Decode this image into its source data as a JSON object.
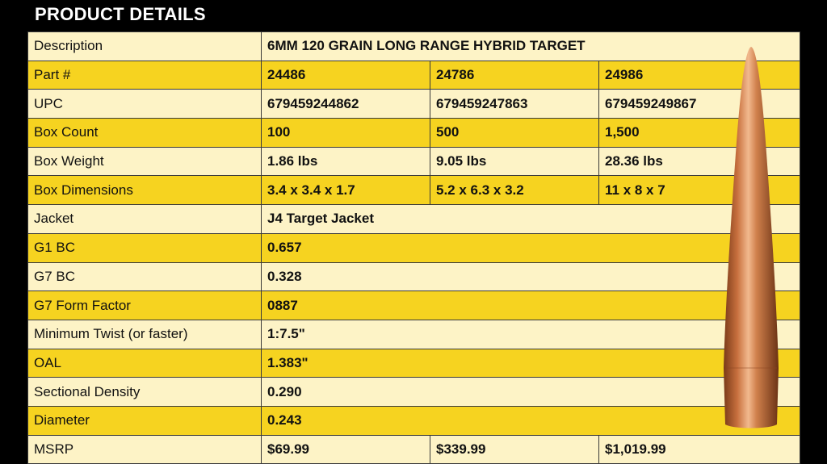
{
  "header": {
    "title": "PRODUCT DETAILS"
  },
  "table": {
    "rows": [
      {
        "label": "Description",
        "values": [
          "6MM 120 GRAIN LONG RANGE HYBRID TARGET"
        ]
      },
      {
        "label": "Part #",
        "values": [
          "24486",
          "24786",
          "24986"
        ]
      },
      {
        "label": "UPC",
        "values": [
          "679459244862",
          "679459247863",
          "679459249867"
        ]
      },
      {
        "label": "Box Count",
        "values": [
          "100",
          "500",
          "1,500"
        ]
      },
      {
        "label": "Box Weight",
        "values": [
          "1.86 lbs",
          "9.05 lbs",
          "28.36 lbs"
        ]
      },
      {
        "label": "Box Dimensions",
        "values": [
          "3.4 x 3.4 x 1.7",
          "5.2 x 6.3 x 3.2",
          "11 x 8 x 7"
        ]
      },
      {
        "label": "Jacket",
        "values": [
          "J4 Target Jacket"
        ]
      },
      {
        "label": "G1 BC",
        "values": [
          "0.657"
        ]
      },
      {
        "label": "G7 BC",
        "values": [
          "0.328"
        ]
      },
      {
        "label": "G7 Form Factor",
        "values": [
          "0887"
        ]
      },
      {
        "label": "Minimum Twist (or faster)",
        "values": [
          "1:7.5\""
        ]
      },
      {
        "label": "OAL",
        "values": [
          "1.383\""
        ]
      },
      {
        "label": "Sectional Density",
        "values": [
          "0.290"
        ]
      },
      {
        "label": "Diameter",
        "values": [
          "0.243"
        ]
      },
      {
        "label": "MSRP",
        "values": [
          "$69.99",
          "$339.99",
          "$1,019.99"
        ]
      }
    ]
  }
}
